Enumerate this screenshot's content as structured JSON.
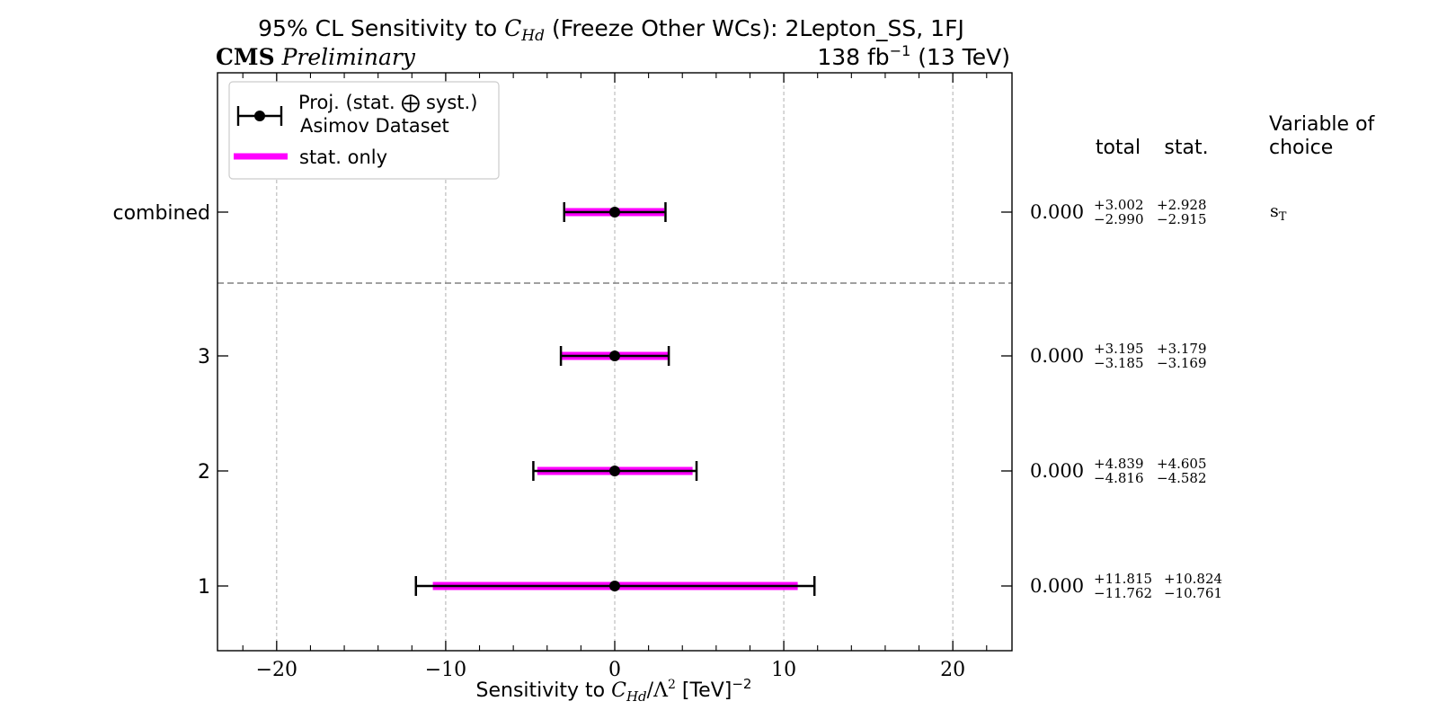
{
  "chart_data": {
    "type": "errorbar",
    "title_prefix": "95% CL Sensitivity to ",
    "title_var": "C",
    "title_var_sub": "Hd",
    "title_suffix": " (Freeze Other WCs): 2Lepton_SS, 1FJ",
    "cms_label": "CMS",
    "cms_sub": "Preliminary",
    "lumi_label": "138 fb",
    "lumi_exp": "−1",
    "lumi_suffix": " (13 TeV)",
    "xlabel_prefix": "Sensitivity to ",
    "xlabel_var": "C",
    "xlabel_var_sub": "Hd",
    "xlabel_mid": "/Λ",
    "xlabel_mid_exp": "2",
    "xlabel_suffix": " [TeV]",
    "xlabel_exp": "−2",
    "xlim": [
      -23.5,
      23.5
    ],
    "xticks": [
      -20,
      -10,
      0,
      10,
      20
    ],
    "xtick_labels": [
      "−20",
      "−10",
      "0",
      "10",
      "20"
    ],
    "grid": true,
    "legend": {
      "position": "top-left",
      "proj_line1": "Proj. (stat. ⨁ syst.)",
      "proj_line2": "Asimov Dataset",
      "stat_label": "stat. only",
      "stat_color": "#ff00ff",
      "proj_color": "#000000"
    },
    "table_headers": {
      "total": "total",
      "stat": "stat.",
      "variable_line1": "Variable of",
      "variable_line2": "choice"
    },
    "rows": [
      {
        "label": "combined",
        "center": 0.0,
        "center_text": "0.000",
        "total_up": 3.002,
        "total_down": 2.99,
        "stat_up": 2.928,
        "stat_down": 2.915,
        "total_up_text": "+3.002",
        "total_down_text": "−2.990",
        "stat_up_text": "+2.928",
        "stat_down_text": "−2.915",
        "variable": "s",
        "variable_sub": "T"
      },
      {
        "label": "3",
        "center": 0.0,
        "center_text": "0.000",
        "total_up": 3.195,
        "total_down": 3.185,
        "stat_up": 3.179,
        "stat_down": 3.169,
        "total_up_text": "+3.195",
        "total_down_text": "−3.185",
        "stat_up_text": "+3.179",
        "stat_down_text": "−3.169",
        "variable": "",
        "variable_sub": ""
      },
      {
        "label": "2",
        "center": 0.0,
        "center_text": "0.000",
        "total_up": 4.839,
        "total_down": 4.816,
        "stat_up": 4.605,
        "stat_down": 4.582,
        "total_up_text": "+4.839",
        "total_down_text": "−4.816",
        "stat_up_text": "+4.605",
        "stat_down_text": "−4.582",
        "variable": "",
        "variable_sub": ""
      },
      {
        "label": "1",
        "center": 0.0,
        "center_text": "0.000",
        "total_up": 11.815,
        "total_down": 11.762,
        "stat_up": 10.824,
        "stat_down": 10.761,
        "total_up_text": "+11.815",
        "total_down_text": "−11.762",
        "stat_up_text": "+10.824",
        "stat_down_text": "−10.761",
        "variable": "",
        "variable_sub": ""
      }
    ]
  }
}
